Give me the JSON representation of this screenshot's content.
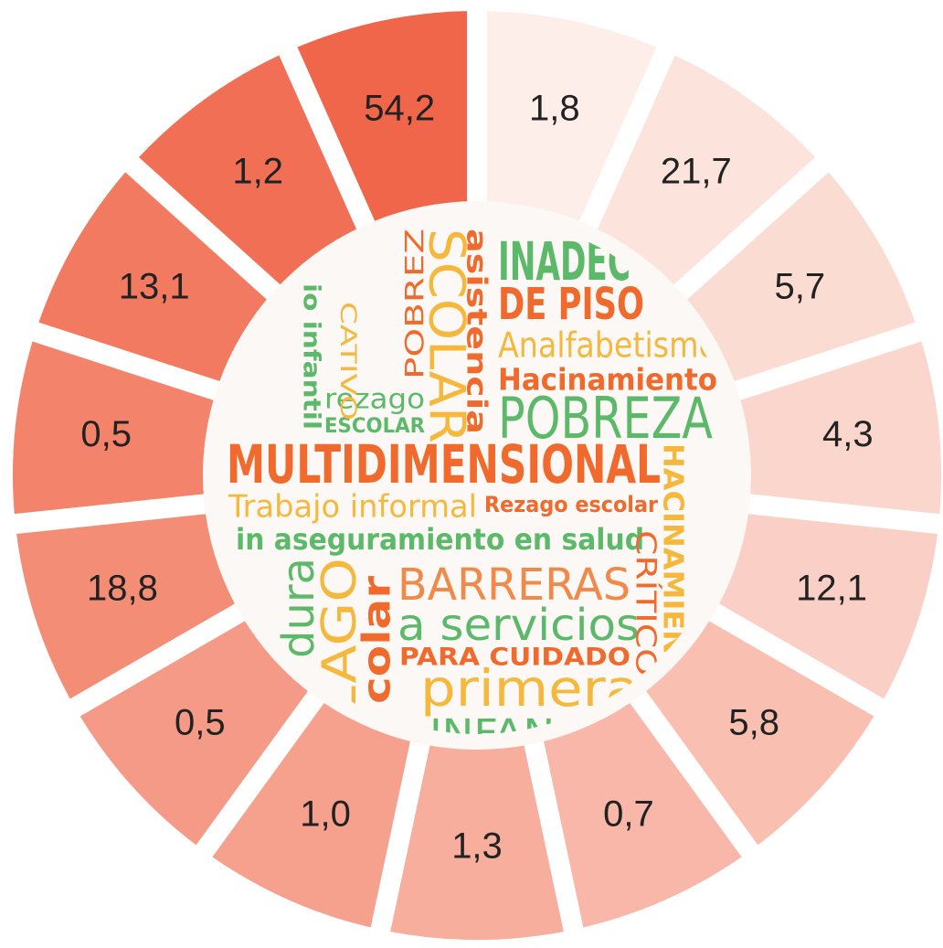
{
  "chart_data": {
    "type": "radial",
    "values": [
      1.8,
      21.7,
      5.7,
      4.3,
      12.1,
      5.8,
      0.7,
      1.3,
      1.0,
      0.5,
      18.8,
      0.5,
      13.1,
      1.2,
      54.2
    ],
    "value_labels": [
      "1,8",
      "21,7",
      "5,7",
      "4,3",
      "12,1",
      "5,8",
      "0,7",
      "1,3",
      "1,0",
      "0,5",
      "18,8",
      "0,5",
      "13,1",
      "1,2",
      "54,2"
    ],
    "colors": [
      "#fdeeea",
      "#fce3dc",
      "#fbdcd3",
      "#fbd6cd",
      "#fad0c6",
      "#f9c0b2",
      "#f8b7a8",
      "#f7ae9d",
      "#f6a18e",
      "#f59a86",
      "#f48d76",
      "#f3836b",
      "#f27a60",
      "#f16f54",
      "#f0664a"
    ],
    "words": [
      {
        "text": "MULTIDIMENSIONAL",
        "color": "#ef6a2c"
      },
      {
        "text": "POBREZA",
        "color": "#5cb96a"
      },
      {
        "text": "Trabajo informal",
        "color": "#f5b83d"
      },
      {
        "text": "Rezago escolar",
        "color": "#ef6a2c"
      },
      {
        "text": "in aseguramiento en salud",
        "color": "#5cb96a"
      },
      {
        "text": "BARRERAS",
        "color": "#f08a4b"
      },
      {
        "text": "a servicios",
        "color": "#5cb96a"
      },
      {
        "text": "PARA CUIDADO",
        "color": "#ef6a2c"
      },
      {
        "text": "primera",
        "color": "#f5b83d"
      },
      {
        "text": "INFANCIA",
        "color": "#5cb96a"
      },
      {
        "text": "INADEC",
        "color": "#5cb96a"
      },
      {
        "text": "DE PISO",
        "color": "#ef6a2c"
      },
      {
        "text": "Analfabetismo",
        "color": "#f5b83d"
      },
      {
        "text": "Hacinamiento",
        "color": "#ef6a2c"
      },
      {
        "text": "rezago",
        "color": "#5cb96a"
      },
      {
        "text": "ESCOLAR",
        "color": "#5cb96a"
      },
      {
        "text": "SCOLAR",
        "color": "#f5b83d"
      },
      {
        "text": "asistencia",
        "color": "#ef6a2c"
      },
      {
        "text": "POBREZ",
        "color": "#ef6a2c"
      },
      {
        "text": "HACINAMIENTO",
        "color": "#f5b83d"
      },
      {
        "text": "CRÍTICO",
        "color": "#ef6a2c"
      },
      {
        "text": "ZAGO",
        "color": "#f5b83d"
      },
      {
        "text": "colar",
        "color": "#ef6a2c"
      },
      {
        "text": "dura",
        "color": "#5cb96a"
      },
      {
        "text": "io infantil",
        "color": "#5cb96a"
      },
      {
        "text": "CATIVO",
        "color": "#f5b83d"
      }
    ]
  }
}
